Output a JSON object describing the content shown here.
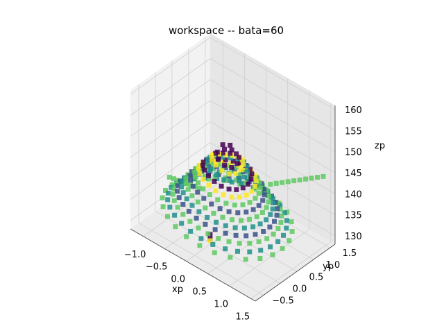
{
  "chart_data": {
    "type": "scatter",
    "projection": "3d",
    "title": "workspace -- bata=60",
    "xlabel": "xp",
    "ylabel": "yp",
    "zlabel": "zp",
    "xlim": [
      -1.3,
      1.6
    ],
    "ylim": [
      -0.75,
      1.65
    ],
    "zlim": [
      128,
      161
    ],
    "xticks": [
      "−1.0",
      "−0.5",
      "0.0",
      "0.5",
      "1.0",
      "1.5"
    ],
    "yticks": [
      "−0.5",
      "0.0",
      "0.5",
      "1.0",
      "1.5"
    ],
    "zticks": [
      "130",
      "135",
      "140",
      "145",
      "150",
      "155",
      "160"
    ],
    "grid": true,
    "marker": "s",
    "colormap": "viridis",
    "shape": "dome-shaped point cloud with stacked colored rings; peak near zp=150 at xp≈0, yp≈0",
    "series": [
      {
        "description": "inner rings",
        "points_xyz": [
          [
            0.0,
            0.0,
            149.5
          ],
          [
            0.2,
            0.0,
            146
          ],
          [
            -0.2,
            0.1,
            146
          ],
          [
            0.3,
            0.3,
            144
          ],
          [
            -0.3,
            -0.2,
            144
          ],
          [
            0.5,
            0.1,
            142
          ],
          [
            -0.5,
            0.2,
            142
          ],
          [
            0.1,
            0.6,
            141
          ],
          [
            0.1,
            -0.5,
            141
          ]
        ]
      },
      {
        "description": "outer rings",
        "points_xyz": [
          [
            0.8,
            0.2,
            138
          ],
          [
            -0.8,
            0.1,
            138
          ],
          [
            0.2,
            0.9,
            137
          ],
          [
            0.1,
            -0.7,
            137
          ],
          [
            1.0,
            0.6,
            135
          ],
          [
            -1.0,
            0.5,
            135
          ],
          [
            0.6,
            1.1,
            134
          ],
          [
            -0.6,
            -0.4,
            134
          ],
          [
            1.2,
            0.8,
            132
          ],
          [
            1.4,
            1.4,
            131
          ],
          [
            -1.1,
            0.9,
            133
          ]
        ]
      }
    ],
    "colors": [
      "#440154",
      "#3b528b",
      "#21918c",
      "#5ec962",
      "#fde725"
    ]
  }
}
